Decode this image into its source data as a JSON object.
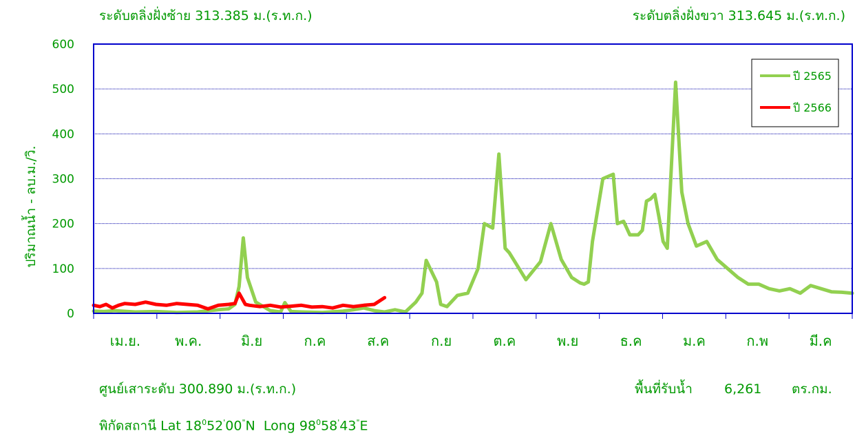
{
  "header": {
    "left_bank": "ระดับตลิ่งฝั่งซ้าย 313.385 ม.(ร.ท.ก.)",
    "right_bank": "ระดับตลิ่งฝั่งขวา 313.645 ม.(ร.ท.ก.)"
  },
  "footer": {
    "zero_gauge": "ศูนย์เสาระดับ 300.890 ม.(ร.ท.ก.)",
    "catchment_label": "พื้นที่รับน้ำ",
    "catchment_value": "6,261",
    "catchment_unit": "ตร.กม.",
    "coords_prefix": "พิกัดสถานี Lat",
    "lat_deg": "18",
    "lat_min": "52",
    "lat_sec": "00",
    "lat_hem": "N",
    "long_label": "Long",
    "long_deg": "98",
    "long_min": "58",
    "long_sec": "43",
    "long_hem": "E",
    "deg_mark": "0",
    "min_mark": "'",
    "sec_mark": "\""
  },
  "colors": {
    "axis_text": "#009900",
    "frame": "#0000cc",
    "grid": "#0000aa",
    "series_2565": "#92d050",
    "series_2566": "#ff0000"
  },
  "chart_data": {
    "type": "line",
    "ylabel": "ปริมาณน้ำ - ลบ.ม./วิ.",
    "ylim": [
      0,
      600
    ],
    "yticks": [
      "0",
      "100",
      "200",
      "300",
      "400",
      "500",
      "600"
    ],
    "month_labels": [
      "เม.ย.",
      "พ.ค.",
      "มิ.ย",
      "ก.ค",
      "ส.ค",
      "ก.ย",
      "ต.ค",
      "พ.ย",
      "ธ.ค",
      "ม.ค",
      "ก.พ",
      "มี.ค"
    ],
    "x_unit": "day index from 1 Apr",
    "x_range": [
      0,
      365
    ],
    "grid": true,
    "legend_position": "top-right",
    "series": [
      {
        "name": "ปี 2565",
        "x": [
          0,
          5,
          10,
          20,
          30,
          40,
          50,
          60,
          65,
          68,
          70,
          72,
          74,
          78,
          85,
          90,
          92,
          95,
          100,
          110,
          120,
          125,
          130,
          135,
          140,
          145,
          148,
          150,
          155,
          158,
          160,
          165,
          167,
          170,
          175,
          180,
          185,
          188,
          192,
          195,
          198,
          200,
          202,
          208,
          215,
          220,
          225,
          230,
          234,
          236,
          238,
          240,
          245,
          250,
          252,
          255,
          258,
          262,
          264,
          266,
          268,
          270,
          272,
          274,
          276,
          280,
          283,
          286,
          290,
          295,
          300,
          305,
          310,
          315,
          320,
          325,
          330,
          335,
          340,
          345,
          350,
          355,
          360,
          365
        ],
        "y": [
          5,
          4,
          6,
          3,
          4,
          2,
          3,
          8,
          10,
          20,
          60,
          168,
          80,
          25,
          6,
          3,
          24,
          4,
          3,
          2,
          5,
          8,
          12,
          6,
          3,
          8,
          5,
          3,
          25,
          45,
          118,
          70,
          20,
          15,
          40,
          45,
          100,
          200,
          190,
          355,
          145,
          135,
          120,
          75,
          115,
          200,
          120,
          80,
          68,
          65,
          70,
          160,
          300,
          310,
          200,
          205,
          175,
          175,
          185,
          250,
          255,
          265,
          215,
          160,
          145,
          515,
          270,
          200,
          150,
          160,
          120,
          100,
          80,
          65,
          65,
          55,
          50,
          55,
          45,
          62,
          55,
          48,
          47,
          45
        ]
      },
      {
        "name": "ปี 2566",
        "x": [
          0,
          3,
          6,
          9,
          12,
          15,
          20,
          25,
          30,
          35,
          40,
          45,
          50,
          55,
          60,
          65,
          68,
          70,
          73,
          75,
          80,
          85,
          90,
          95,
          100,
          105,
          110,
          115,
          120,
          125,
          130,
          135,
          140
        ],
        "y": [
          18,
          15,
          20,
          12,
          18,
          22,
          20,
          25,
          20,
          18,
          22,
          20,
          18,
          10,
          18,
          20,
          22,
          45,
          20,
          18,
          15,
          18,
          14,
          16,
          18,
          14,
          15,
          12,
          18,
          15,
          18,
          20,
          35
        ]
      }
    ]
  }
}
